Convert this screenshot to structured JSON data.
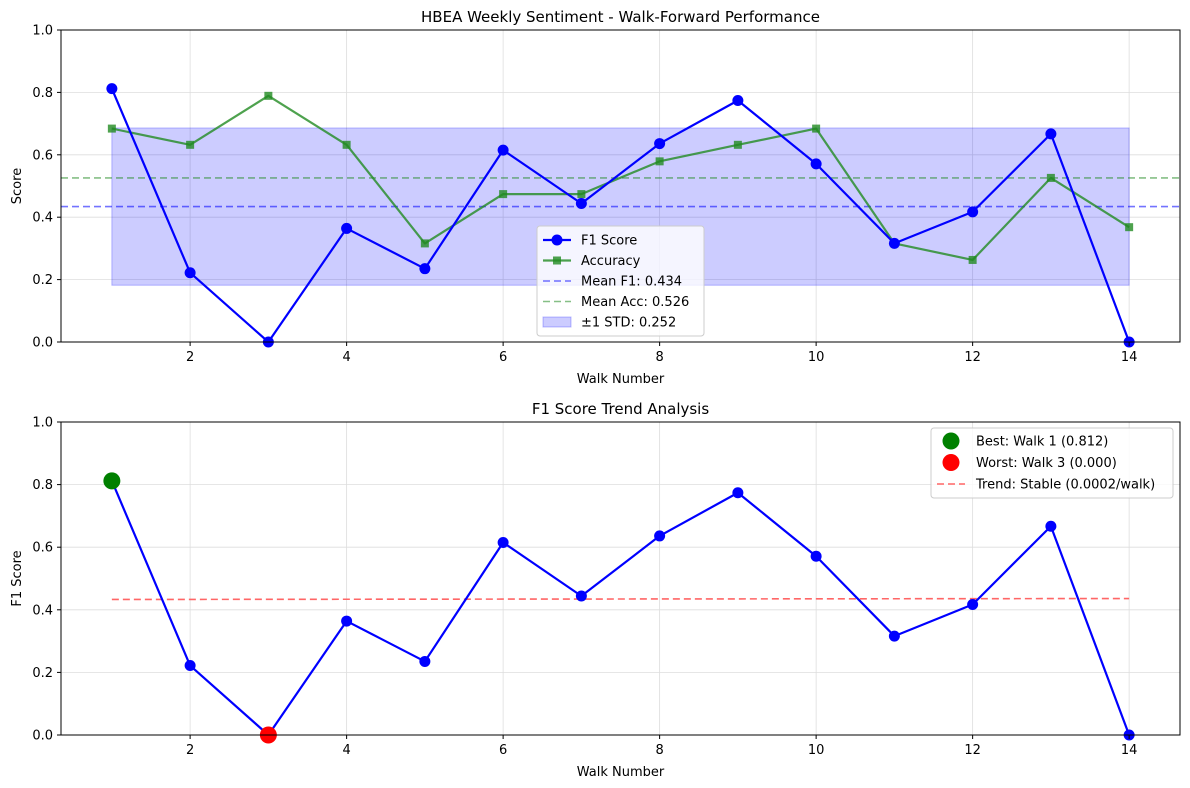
{
  "chart_data": [
    {
      "type": "line",
      "title": "HBEA Weekly Sentiment - Walk-Forward Performance",
      "xlabel": "Walk Number",
      "ylabel": "Score",
      "xlim": [
        0.35,
        14.65
      ],
      "ylim": [
        0,
        1
      ],
      "xticks": [
        2,
        4,
        6,
        8,
        10,
        12,
        14
      ],
      "yticks": [
        0.0,
        0.2,
        0.4,
        0.6,
        0.8,
        1.0
      ],
      "grid": true,
      "legend_position": "lower-center",
      "x": [
        1,
        2,
        3,
        4,
        5,
        6,
        7,
        8,
        9,
        10,
        11,
        12,
        13,
        14
      ],
      "series": [
        {
          "name": "F1 Score",
          "color": "#0000ff",
          "marker": "circle",
          "values": [
            0.812,
            0.222,
            0.0,
            0.364,
            0.235,
            0.615,
            0.444,
            0.636,
            0.774,
            0.571,
            0.316,
            0.417,
            0.667,
            0.0
          ]
        },
        {
          "name": "Accuracy",
          "color": "#228b22",
          "marker": "square",
          "values": [
            0.684,
            0.632,
            0.789,
            0.632,
            0.316,
            0.474,
            0.474,
            0.579,
            0.632,
            0.684,
            0.316,
            0.263,
            0.526,
            0.368
          ]
        }
      ],
      "reference_lines": [
        {
          "name": "Mean F1: 0.434",
          "value": 0.434,
          "color": "#0000ff"
        },
        {
          "name": "Mean Acc: 0.526",
          "value": 0.526,
          "color": "#228b22"
        }
      ],
      "band": {
        "name": "±1 STD: 0.252",
        "low": 0.182,
        "high": 0.686,
        "x_from": 1,
        "x_to": 14,
        "color": "#0000ff"
      }
    },
    {
      "type": "line",
      "title": "F1 Score Trend Analysis",
      "xlabel": "Walk Number",
      "ylabel": "F1 Score",
      "xlim": [
        0.35,
        14.65
      ],
      "ylim": [
        0,
        1
      ],
      "xticks": [
        2,
        4,
        6,
        8,
        10,
        12,
        14
      ],
      "yticks": [
        0.0,
        0.2,
        0.4,
        0.6,
        0.8,
        1.0
      ],
      "grid": true,
      "legend_position": "upper-right",
      "x": [
        1,
        2,
        3,
        4,
        5,
        6,
        7,
        8,
        9,
        10,
        11,
        12,
        13,
        14
      ],
      "series": [
        {
          "name": "",
          "color": "#0000ff",
          "marker": "circle",
          "values": [
            0.812,
            0.222,
            0.0,
            0.364,
            0.235,
            0.615,
            0.444,
            0.636,
            0.774,
            0.571,
            0.316,
            0.417,
            0.667,
            0.0
          ]
        }
      ],
      "highlights": [
        {
          "name": "Best: Walk 1 (0.812)",
          "x": 1,
          "y": 0.812,
          "color": "#008000"
        },
        {
          "name": "Worst: Walk 3 (0.000)",
          "x": 3,
          "y": 0.0,
          "color": "#ff0000"
        }
      ],
      "trend": {
        "name": "Trend: Stable (0.0002/walk)",
        "x_from": 1,
        "x_to": 14,
        "y_from": 0.433,
        "y_to": 0.436,
        "color": "#ff6666"
      }
    }
  ]
}
